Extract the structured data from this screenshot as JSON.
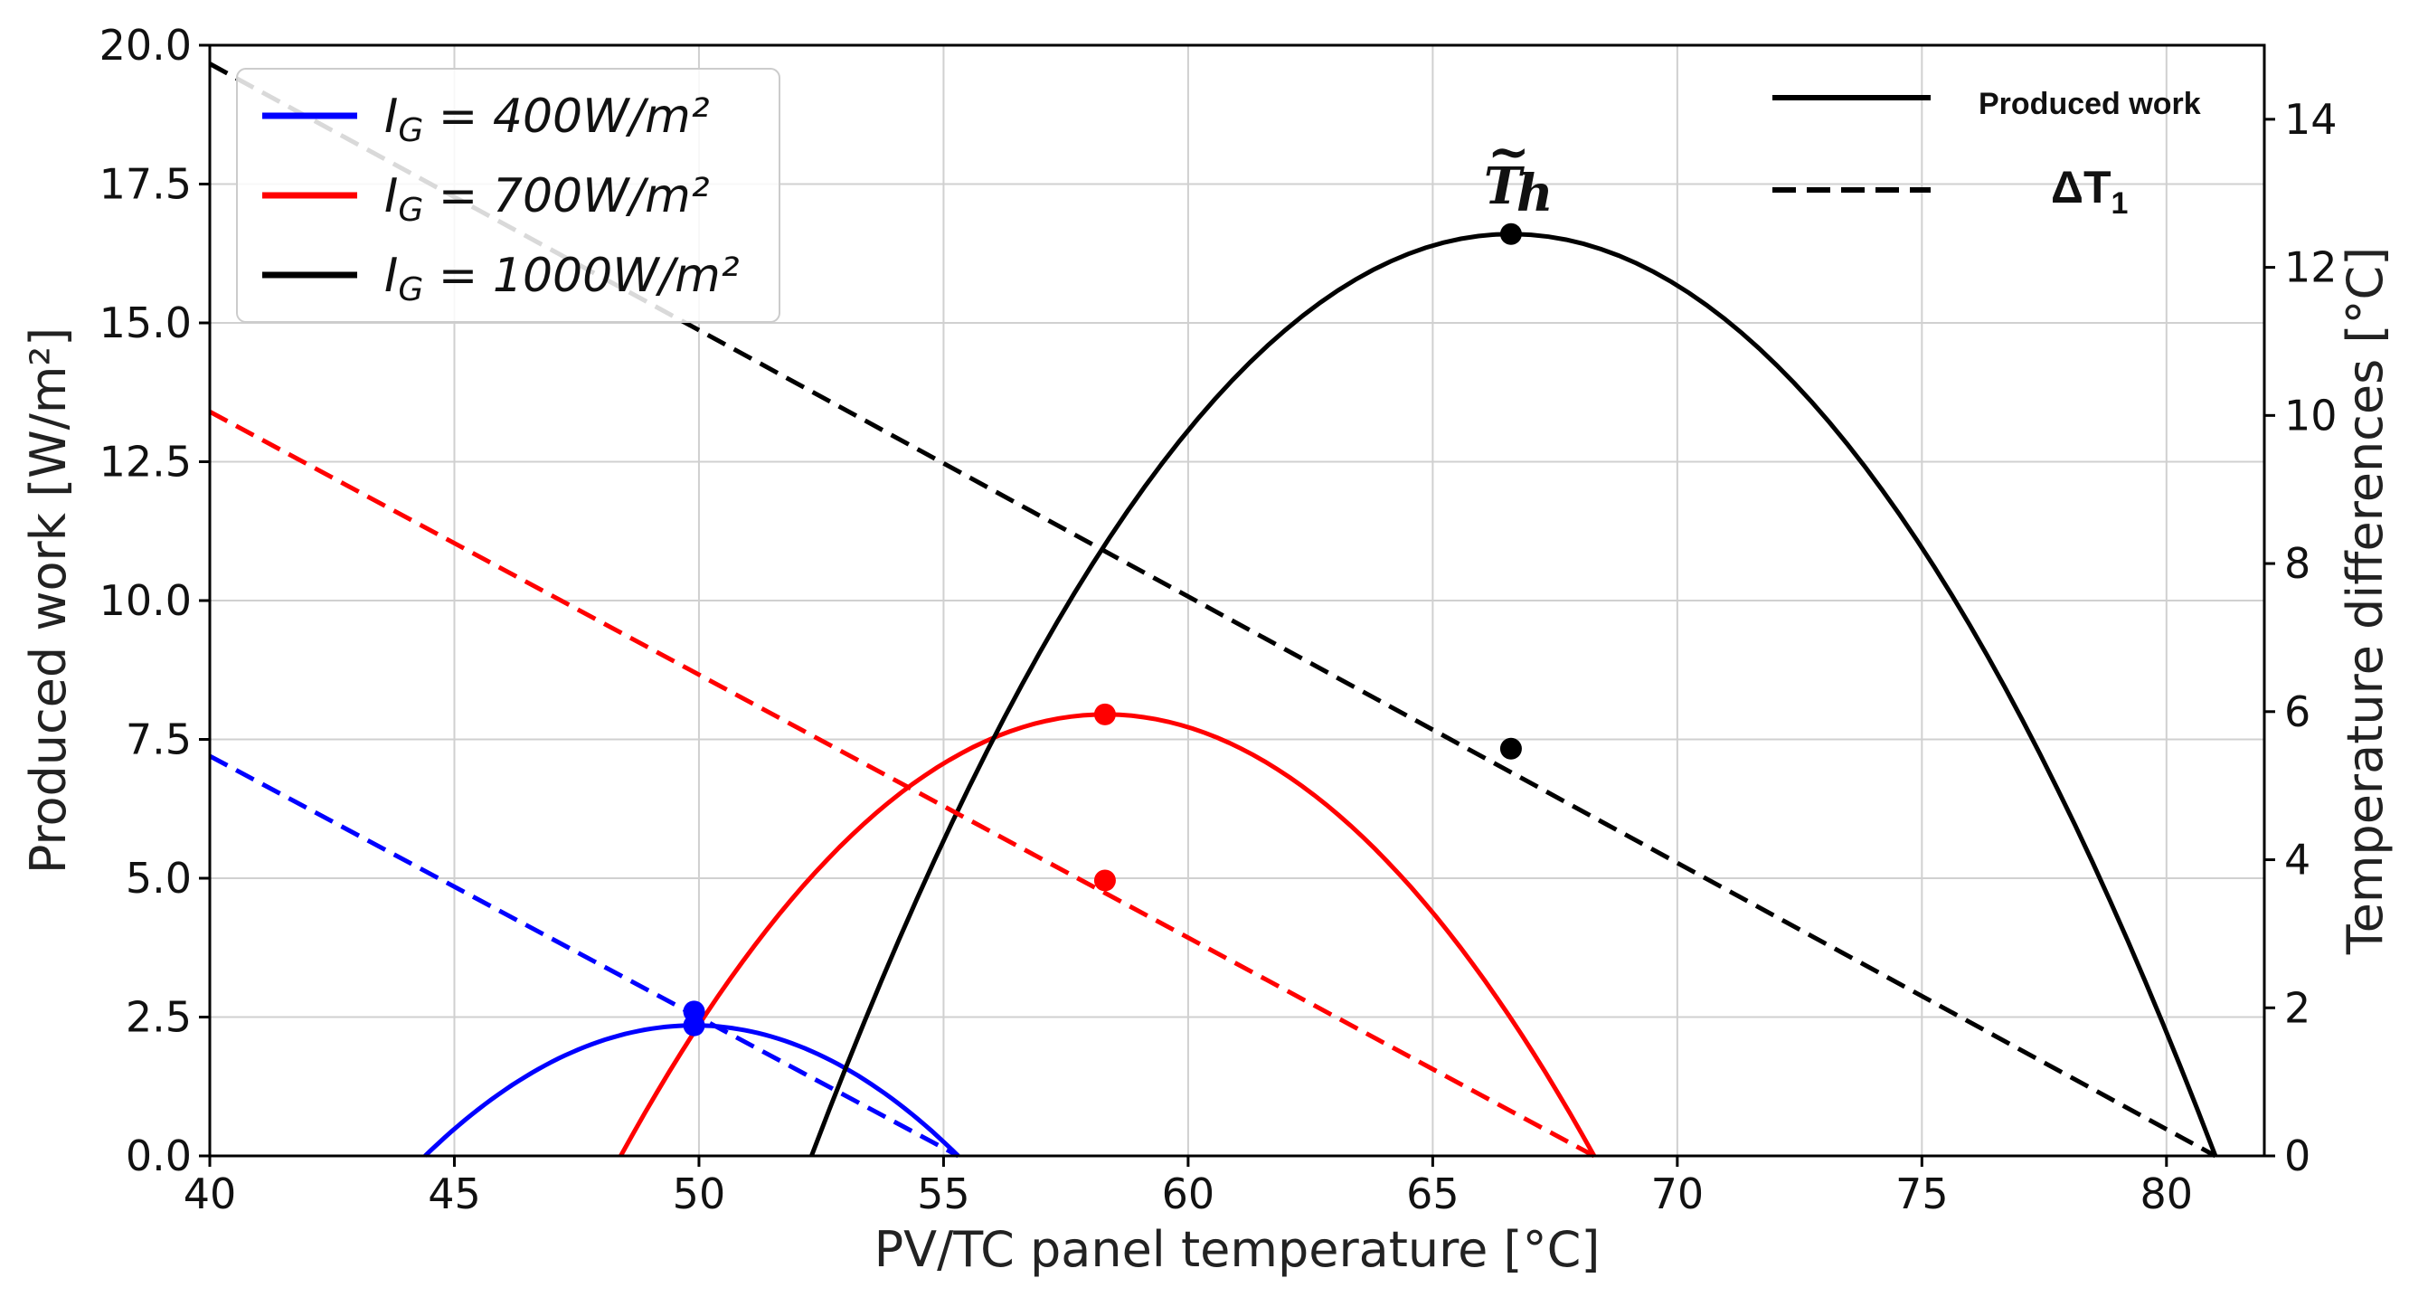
{
  "chart_data": {
    "type": "line",
    "title": "",
    "xlabel": "PV/TC panel temperature [°C]",
    "ylabel": "Produced work [W/m²]",
    "y2label": "Temperature differences [°C]",
    "xlim": [
      40,
      82
    ],
    "ylim": [
      0,
      20
    ],
    "y2lim": [
      0,
      15
    ],
    "xticks": [
      40,
      45,
      50,
      55,
      60,
      65,
      70,
      75,
      80
    ],
    "xtick_labels": [
      "40",
      "45",
      "50",
      "55",
      "60",
      "65",
      "70",
      "75",
      "80"
    ],
    "yticks": [
      0,
      2.5,
      5,
      7.5,
      10,
      12.5,
      15,
      17.5,
      20
    ],
    "ytick_labels": [
      "0.0",
      "2.5",
      "5.0",
      "7.5",
      "10.0",
      "12.5",
      "15.0",
      "17.5",
      "20.0"
    ],
    "y2ticks": [
      0,
      2,
      4,
      6,
      8,
      10,
      12,
      14
    ],
    "y2tick_labels": [
      "0",
      "2",
      "4",
      "6",
      "8",
      "10",
      "12",
      "14"
    ],
    "grid": true,
    "irradiance_legend": [
      {
        "key": "s400",
        "prefix": "I",
        "sub": "G",
        "text": " = 400W/m²",
        "color": "#0000ff"
      },
      {
        "key": "s700",
        "prefix": "I",
        "sub": "G",
        "text": " = 700W/m²",
        "color": "#ff0000"
      },
      {
        "key": "s1000",
        "prefix": "I",
        "sub": "G",
        "text": " = 1000W/m²",
        "color": "#000000"
      }
    ],
    "style_legend": {
      "solid": "Produced work",
      "dashed": "ΔT",
      "dashed_sub": "1"
    },
    "annotation": {
      "text": "T",
      "sub": "h",
      "accent": "~",
      "x": 66.6
    },
    "series": [
      {
        "name": "I_G = 400W/m² produced work",
        "key": "s400w",
        "color": "#0000ff",
        "style": "solid",
        "axis": "left",
        "shape": "parabola",
        "x_start": 44.4,
        "x_end": 55.3,
        "x_peak": 49.9,
        "y_peak": 2.35
      },
      {
        "name": "I_G = 700W/m² produced work",
        "key": "s700w",
        "color": "#ff0000",
        "style": "solid",
        "axis": "left",
        "shape": "parabola",
        "x_start": 48.4,
        "x_end": 68.3,
        "x_peak": 58.3,
        "y_peak": 7.95
      },
      {
        "name": "I_G = 1000W/m² produced work",
        "key": "s1000w",
        "color": "#000000",
        "style": "solid",
        "axis": "left",
        "shape": "parabola",
        "x_start": 52.3,
        "x_end": 81.0,
        "x_peak": 66.6,
        "y_peak": 16.6
      },
      {
        "name": "I_G = 400W/m² ΔT1",
        "key": "s400d",
        "color": "#0000ff",
        "style": "dashed",
        "axis": "right",
        "x": [
          40,
          55.3
        ],
        "y": [
          5.4,
          0
        ]
      },
      {
        "name": "I_G = 700W/m² ΔT1",
        "key": "s700d",
        "color": "#ff0000",
        "style": "dashed",
        "axis": "right",
        "x": [
          40,
          68.3
        ],
        "y": [
          10.05,
          0
        ]
      },
      {
        "name": "I_G = 1000W/m² ΔT1",
        "key": "s1000d",
        "color": "#000000",
        "style": "dashed",
        "axis": "right",
        "x": [
          40,
          81.0
        ],
        "y": [
          14.75,
          0
        ]
      }
    ],
    "markers": [
      {
        "key": "m400w",
        "x": 49.9,
        "y": 2.35,
        "axis": "left",
        "color": "#0000ff"
      },
      {
        "key": "m400d",
        "x": 49.9,
        "y": 1.95,
        "axis": "right",
        "color": "#0000ff"
      },
      {
        "key": "m700w",
        "x": 58.3,
        "y": 7.95,
        "axis": "left",
        "color": "#ff0000"
      },
      {
        "key": "m700d",
        "x": 58.3,
        "y": 3.72,
        "axis": "right",
        "color": "#ff0000"
      },
      {
        "key": "m1000w",
        "x": 66.6,
        "y": 16.6,
        "axis": "left",
        "color": "#000000"
      },
      {
        "key": "m1000d",
        "x": 66.6,
        "y": 5.5,
        "axis": "right",
        "color": "#000000"
      }
    ]
  }
}
